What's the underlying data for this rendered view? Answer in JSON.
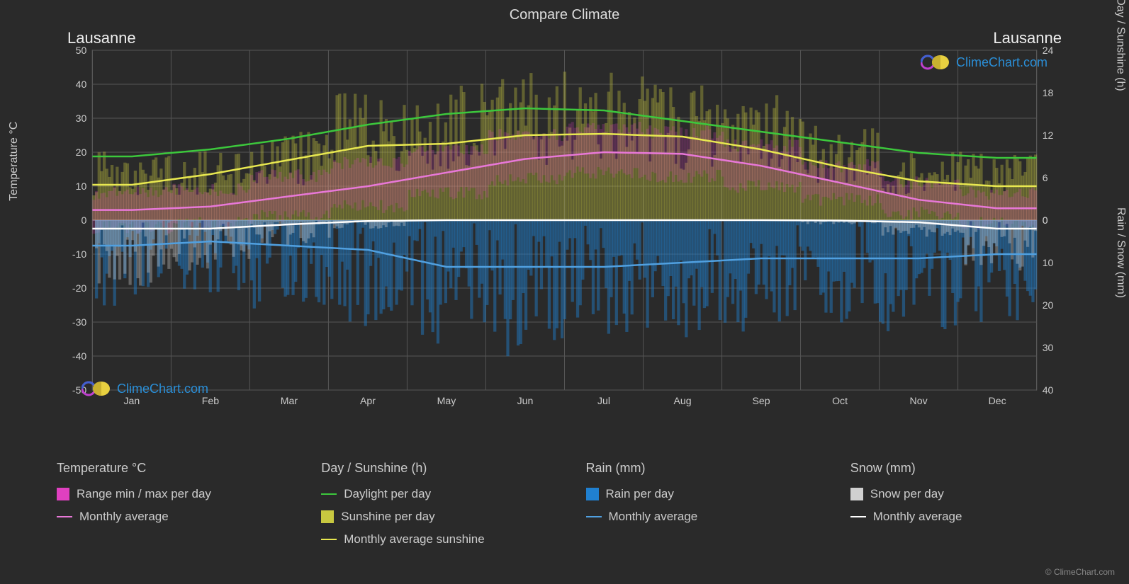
{
  "title": "Compare Climate",
  "city_left": "Lausanne",
  "city_right": "Lausanne",
  "brand": "ClimeChart.com",
  "copyright": "© ClimeChart.com",
  "axes": {
    "left_label": "Temperature °C",
    "right_top_label": "Day / Sunshine (h)",
    "right_bottom_label": "Rain / Snow (mm)",
    "left_ticks": [
      50,
      40,
      30,
      20,
      10,
      0,
      -10,
      -20,
      -30,
      -40,
      -50
    ],
    "left_min": -50,
    "left_max": 50,
    "right_top_ticks": [
      24,
      18,
      12,
      6,
      0
    ],
    "right_top_min": 0,
    "right_top_max": 24,
    "right_bottom_ticks": [
      0,
      10,
      20,
      30,
      40
    ],
    "right_bottom_min": 0,
    "right_bottom_max": 40,
    "months": [
      "Jan",
      "Feb",
      "Mar",
      "Apr",
      "May",
      "Jun",
      "Jul",
      "Aug",
      "Sep",
      "Oct",
      "Nov",
      "Dec"
    ]
  },
  "colors": {
    "background": "#2a2a2a",
    "plot_bg": "#2a2a2a",
    "grid": "#555555",
    "grid_heavy": "#888888",
    "text": "#cccccc",
    "temp_range": "#e040c0",
    "temp_avg": "#e878d8",
    "daylight": "#3cc83c",
    "sunshine": "#c8c840",
    "sunshine_avg": "#e8e850",
    "rain": "#2080d0",
    "rain_avg": "#50a0e0",
    "snow": "#d0d0d0",
    "snow_avg": "#ffffff",
    "brand": "#2a8fd8"
  },
  "chart": {
    "months_x": [
      0.042,
      0.125,
      0.208,
      0.292,
      0.375,
      0.458,
      0.542,
      0.625,
      0.708,
      0.792,
      0.875,
      0.958
    ],
    "daylight_h": [
      9,
      10,
      11.5,
      13.5,
      15,
      15.8,
      15.5,
      14,
      12.5,
      11,
      9.5,
      8.8
    ],
    "sunshine_avg_h": [
      5,
      6.5,
      8.5,
      10.5,
      10.8,
      12,
      12.2,
      11.8,
      10,
      7.5,
      5.5,
      4.8
    ],
    "sunshine_daily_density": [
      7,
      7,
      9,
      13,
      14,
      15,
      15,
      14,
      13,
      10,
      7,
      7
    ],
    "temp_avg_c": [
      3,
      4,
      7,
      10,
      14,
      18,
      20,
      19.5,
      16,
      11,
      6,
      3.5
    ],
    "temp_range_min_c": [
      -2,
      -1,
      1,
      4,
      8,
      12,
      14,
      13,
      10,
      6,
      2,
      -1
    ],
    "temp_range_max_c": [
      8,
      9,
      13,
      17,
      21,
      25,
      27,
      26,
      22,
      16,
      11,
      8
    ],
    "rain_avg_mm": [
      6,
      5,
      6,
      7,
      11,
      11,
      11,
      10,
      9,
      9,
      9,
      8
    ],
    "rain_daily_density": [
      12,
      10,
      12,
      14,
      18,
      18,
      18,
      16,
      15,
      15,
      15,
      14
    ],
    "snow_avg_mm": [
      2,
      2,
      1,
      0.2,
      0,
      0,
      0,
      0,
      0,
      0.1,
      0.5,
      2
    ],
    "snow_daily_density": [
      8,
      6,
      3,
      1,
      0,
      0,
      0,
      0,
      0,
      0.5,
      2,
      6
    ]
  },
  "legend": {
    "groups": [
      {
        "title": "Temperature °C",
        "items": [
          {
            "type": "rect",
            "color": "#e040c0",
            "label": "Range min / max per day"
          },
          {
            "type": "line",
            "color": "#e878d8",
            "label": "Monthly average"
          }
        ]
      },
      {
        "title": "Day / Sunshine (h)",
        "items": [
          {
            "type": "line",
            "color": "#3cc83c",
            "label": "Daylight per day"
          },
          {
            "type": "rect",
            "color": "#c8c840",
            "label": "Sunshine per day"
          },
          {
            "type": "line",
            "color": "#e8e850",
            "label": "Monthly average sunshine"
          }
        ]
      },
      {
        "title": "Rain (mm)",
        "items": [
          {
            "type": "rect",
            "color": "#2080d0",
            "label": "Rain per day"
          },
          {
            "type": "line",
            "color": "#50a0e0",
            "label": "Monthly average"
          }
        ]
      },
      {
        "title": "Snow (mm)",
        "items": [
          {
            "type": "rect",
            "color": "#d0d0d0",
            "label": "Snow per day"
          },
          {
            "type": "line",
            "color": "#ffffff",
            "label": "Monthly average"
          }
        ]
      }
    ]
  },
  "style": {
    "title_fontsize": 20,
    "axis_fontsize": 16,
    "tick_fontsize": 14,
    "legend_fontsize": 17,
    "line_width": 2.5,
    "grid_width": 1,
    "bar_opacity": 0.35
  }
}
